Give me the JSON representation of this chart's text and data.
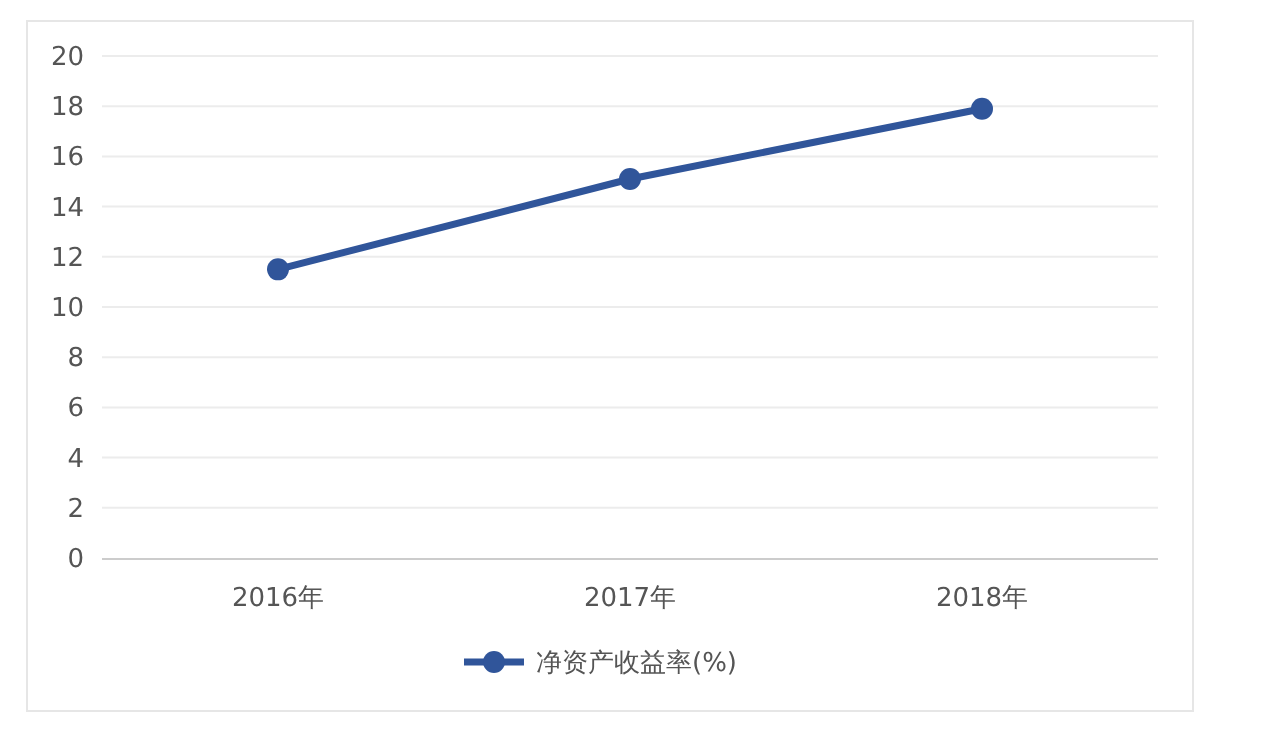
{
  "chart_data": {
    "type": "line",
    "categories": [
      "2016年",
      "2017年",
      "2018年"
    ],
    "series": [
      {
        "name": "净资产收益率(%)",
        "color": "#30559a",
        "values": [
          11.5,
          15.1,
          17.9
        ]
      }
    ],
    "ylim": [
      0,
      20
    ],
    "yticks": [
      0,
      2,
      4,
      6,
      8,
      10,
      12,
      14,
      16,
      18,
      20
    ],
    "grid": "y",
    "legend": "bottom",
    "marker": "circle",
    "line_style": "solid"
  }
}
